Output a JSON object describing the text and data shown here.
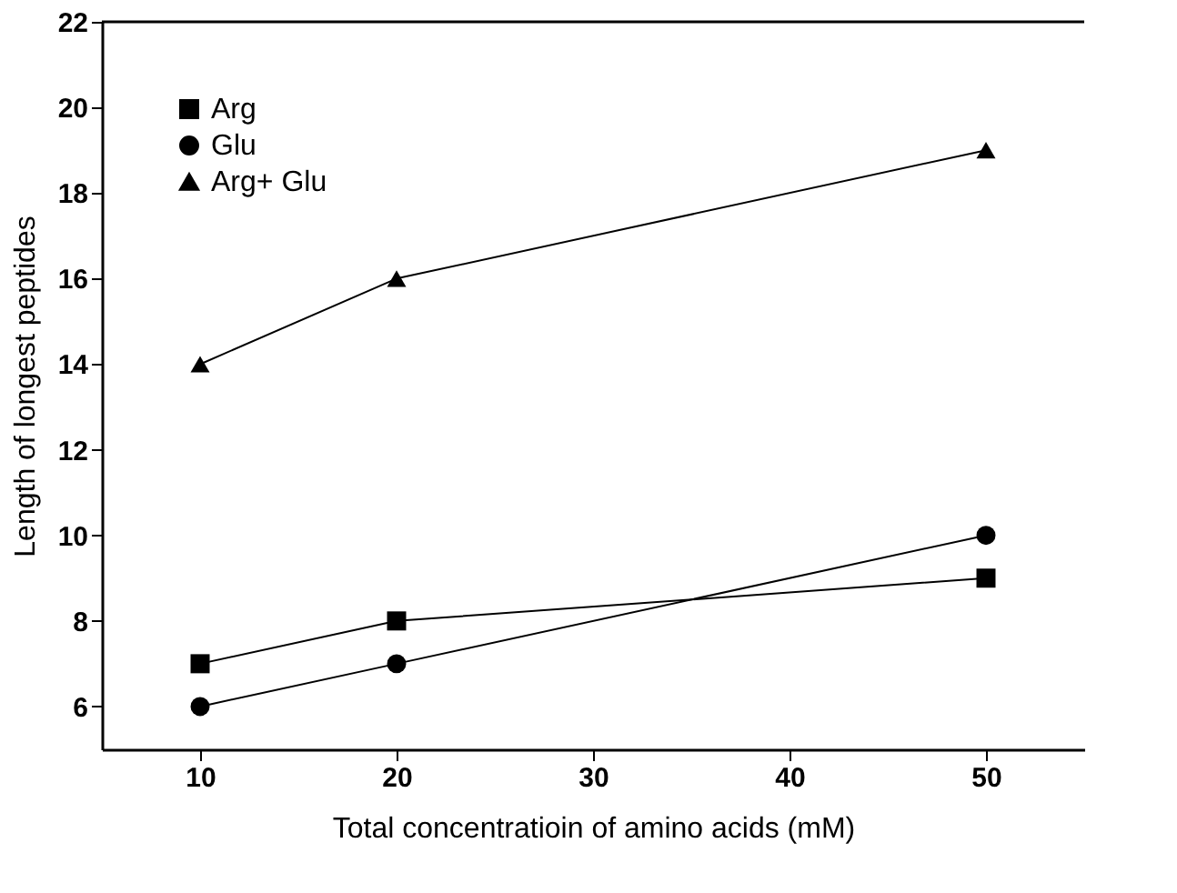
{
  "chart_data": {
    "type": "line",
    "xlabel": "Total concentratioin of amino acids (mM)",
    "ylabel": "Length of longest peptides",
    "x": [
      10,
      20,
      50
    ],
    "series": [
      {
        "name": "Arg",
        "color": "#000000",
        "marker": "square",
        "values": [
          7,
          8,
          9
        ]
      },
      {
        "name": "Glu",
        "color": "#000000",
        "marker": "circle",
        "values": [
          6,
          7,
          10
        ]
      },
      {
        "name": "Arg+ Glu",
        "color": "#000000",
        "marker": "triangle",
        "values": [
          14,
          16,
          19
        ]
      }
    ],
    "xlim": [
      5,
      55
    ],
    "xticks": [
      10,
      20,
      30,
      40,
      50
    ],
    "ylim": [
      5,
      22
    ],
    "yticks": [
      6,
      8,
      10,
      12,
      14,
      16,
      18,
      20,
      22
    ],
    "grid": false,
    "legend": "top left",
    "line_style": "solid"
  }
}
